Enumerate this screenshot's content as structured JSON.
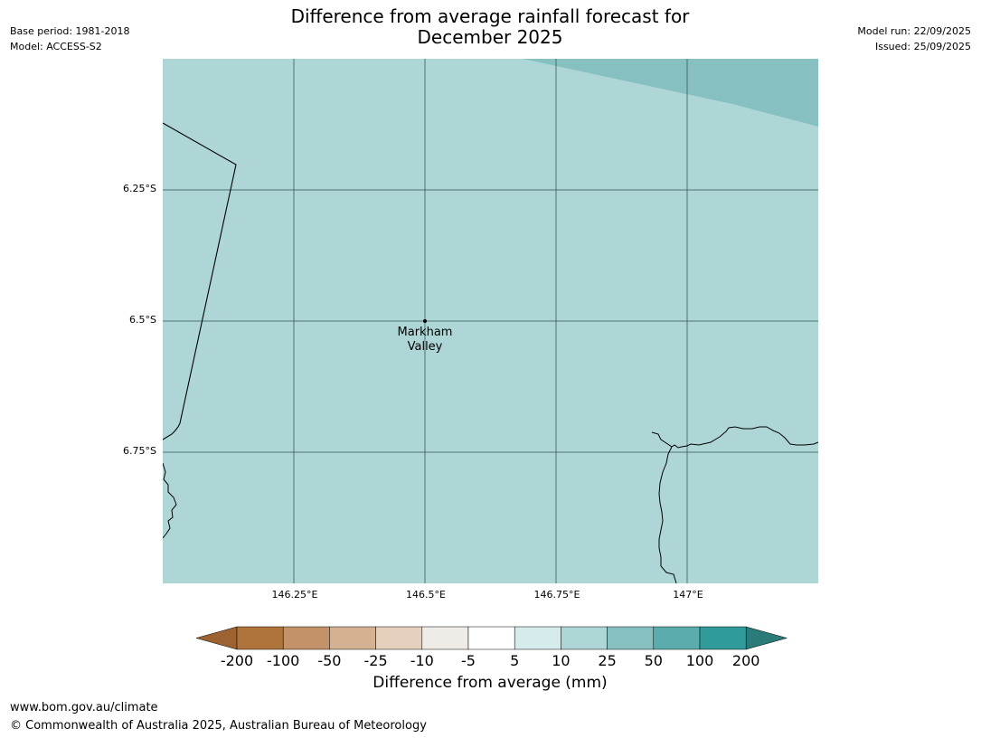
{
  "header": {
    "title_line1": "Difference from average rainfall forecast for",
    "title_line2": "December 2025",
    "base_period": "Base period: 1981-2018",
    "model": "Model: ACCESS-S2",
    "model_run": "Model run: 22/09/2025",
    "issued": "Issued: 25/09/2025"
  },
  "map": {
    "lat_labels": [
      "6.25°S",
      "6.5°S",
      "6.75°S"
    ],
    "lon_labels": [
      "146.25°E",
      "146.5°E",
      "146.75°E",
      "147°E"
    ],
    "place": {
      "line1": "Markham",
      "line2": "Valley"
    },
    "colors": {
      "base_fill": "#aed6d6",
      "higher_fill": "#86c0c0",
      "grid": "#2f4f4f",
      "coast": "#000000"
    }
  },
  "colorbar": {
    "title": "Difference from average (mm)",
    "ticks": [
      "-200",
      "-100",
      "-50",
      "-25",
      "-10",
      "-5",
      "5",
      "10",
      "25",
      "50",
      "100",
      "200"
    ],
    "colors": [
      "#9c6232",
      "#af743b",
      "#c49269",
      "#d4b291",
      "#e5d0bd",
      "#efebe7",
      "#ffffff",
      "#d6ebeb",
      "#aed6d6",
      "#86c0c0",
      "#5bacac",
      "#319a9a",
      "#2b7b7b"
    ]
  },
  "footer": {
    "url": "www.bom.gov.au/climate",
    "copyright": "© Commonwealth of Australia 2025, Australian Bureau of Meteorology"
  }
}
